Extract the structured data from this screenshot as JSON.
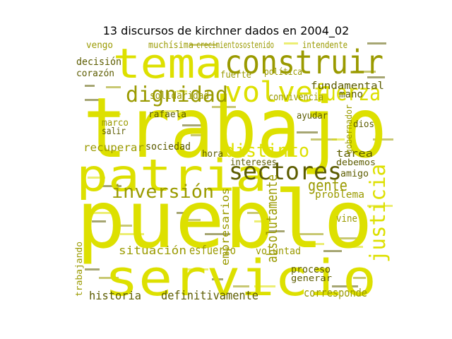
{
  "title": "13 discursos de kirchner dados en 2004_02",
  "colors": {
    "yellow": "#dde000",
    "olive": "#9a9a00",
    "dark": "#5c5c00"
  },
  "words": [
    {
      "text": "trabajo",
      "color": "yellow"
    },
    {
      "text": "pueblo",
      "color": "yellow"
    },
    {
      "text": "servicio",
      "color": "yellow"
    },
    {
      "text": "patria",
      "color": "yellow"
    },
    {
      "text": "tema",
      "color": "yellow"
    },
    {
      "text": "construir",
      "color": "olive"
    },
    {
      "text": "dignidad",
      "color": "olive"
    },
    {
      "text": "volver",
      "color": "yellow"
    },
    {
      "text": "fuerza",
      "color": "yellow"
    },
    {
      "text": "sectores",
      "color": "dark"
    },
    {
      "text": "inversión",
      "color": "olive"
    },
    {
      "text": "distinto",
      "color": "yellow"
    },
    {
      "text": "justicia",
      "color": "yellow"
    },
    {
      "text": "absolutamente",
      "color": "olive"
    },
    {
      "text": "gente",
      "color": "olive"
    },
    {
      "text": "empresarios",
      "color": "olive"
    },
    {
      "text": "definitivamente",
      "color": "dark"
    },
    {
      "text": "situación",
      "color": "olive"
    },
    {
      "text": "esfuerzo",
      "color": "olive"
    },
    {
      "text": "historia",
      "color": "dark"
    },
    {
      "text": "corresponde",
      "color": "olive"
    },
    {
      "text": "proceso",
      "color": "dark"
    },
    {
      "text": "generar",
      "color": "dark"
    },
    {
      "text": "voluntad",
      "color": "olive"
    },
    {
      "text": "recuperar",
      "color": "olive"
    },
    {
      "text": "sociedad",
      "color": "dark"
    },
    {
      "text": "solidaridad",
      "color": "olive"
    },
    {
      "text": "decisión",
      "color": "dark"
    },
    {
      "text": "corazón",
      "color": "dark"
    },
    {
      "text": "rafaela",
      "color": "dark"
    },
    {
      "text": "marco",
      "color": "olive"
    },
    {
      "text": "salir",
      "color": "dark"
    },
    {
      "text": "vengo",
      "color": "olive"
    },
    {
      "text": "muchísima",
      "color": "olive"
    },
    {
      "text": "crecimientosostenido",
      "color": "olive"
    },
    {
      "text": "intendente",
      "color": "olive"
    },
    {
      "text": "fundamental",
      "color": "dark"
    },
    {
      "text": "mano",
      "color": "dark"
    },
    {
      "text": "convivencia",
      "color": "olive"
    },
    {
      "text": "política",
      "color": "olive"
    },
    {
      "text": "fuerte",
      "color": "olive"
    },
    {
      "text": "ayudar",
      "color": "dark"
    },
    {
      "text": "dios",
      "color": "dark"
    },
    {
      "text": "tarea",
      "color": "dark"
    },
    {
      "text": "debemos",
      "color": "dark"
    },
    {
      "text": "amigo",
      "color": "dark"
    },
    {
      "text": "problema",
      "color": "olive"
    },
    {
      "text": "intereses",
      "color": "dark"
    },
    {
      "text": "hora",
      "color": "dark"
    },
    {
      "text": "vine",
      "color": "olive"
    },
    {
      "text": "trabajando",
      "color": "olive"
    },
    {
      "text": "gobernador",
      "color": "olive"
    }
  ]
}
